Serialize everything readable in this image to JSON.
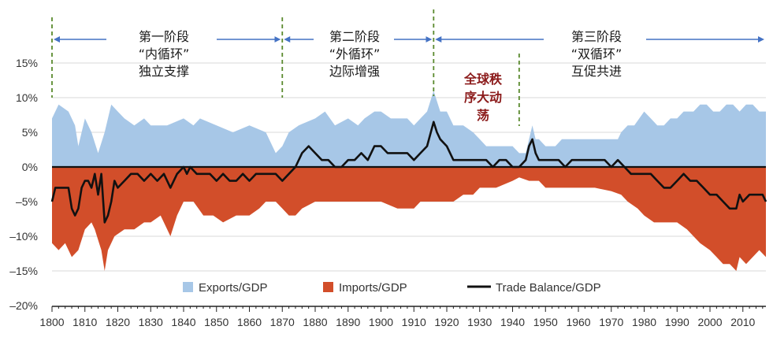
{
  "chart_data": {
    "type": "area",
    "title": "",
    "xlabel": "",
    "ylabel": "",
    "xlim": [
      1800,
      2017
    ],
    "ylim": [
      -20,
      15
    ],
    "x_ticks": [
      1800,
      1810,
      1820,
      1830,
      1840,
      1850,
      1860,
      1870,
      1880,
      1890,
      1900,
      1910,
      1920,
      1930,
      1940,
      1950,
      1960,
      1970,
      1980,
      1990,
      2000,
      2010
    ],
    "x_tick_labels": [
      "1800",
      "1810",
      "1820",
      "1830",
      "1840",
      "1850",
      "1860",
      "1870",
      "1880",
      "1890",
      "1900",
      "1910",
      "1920",
      "1930",
      "1940",
      "1950",
      "1960",
      "1970",
      "1980",
      "1990",
      "2000",
      "2010"
    ],
    "y_ticks": [
      15,
      10,
      5,
      0,
      -5,
      -10,
      -15,
      -20
    ],
    "y_tick_labels": [
      "15%",
      "10%",
      "5%",
      "0%",
      "–5%",
      "–10%",
      "–15%",
      "–20%"
    ],
    "grid": "horizontal",
    "legend_position": "bottom",
    "legend": [
      {
        "label": "Exports/GDP",
        "color": "#a7c7e7",
        "kind": "area"
      },
      {
        "label": "Imports/GDP",
        "color": "#d24e2a",
        "kind": "area"
      },
      {
        "label": "Trade Balance/GDP",
        "color": "#111111",
        "kind": "line"
      }
    ],
    "series": [
      {
        "name": "Exports/GDP",
        "color": "#a7c7e7",
        "points": [
          [
            1800,
            7
          ],
          [
            1802,
            9
          ],
          [
            1805,
            8
          ],
          [
            1807,
            6
          ],
          [
            1808,
            3
          ],
          [
            1810,
            7
          ],
          [
            1812,
            5
          ],
          [
            1814,
            2
          ],
          [
            1816,
            5
          ],
          [
            1818,
            9
          ],
          [
            1820,
            8
          ],
          [
            1822,
            7
          ],
          [
            1825,
            6
          ],
          [
            1828,
            7
          ],
          [
            1830,
            6
          ],
          [
            1835,
            6
          ],
          [
            1840,
            7
          ],
          [
            1843,
            6
          ],
          [
            1845,
            7
          ],
          [
            1850,
            6
          ],
          [
            1855,
            5
          ],
          [
            1860,
            6
          ],
          [
            1865,
            5
          ],
          [
            1868,
            2
          ],
          [
            1870,
            3
          ],
          [
            1872,
            5
          ],
          [
            1875,
            6
          ],
          [
            1880,
            7
          ],
          [
            1883,
            8
          ],
          [
            1886,
            6
          ],
          [
            1890,
            7
          ],
          [
            1893,
            6
          ],
          [
            1895,
            7
          ],
          [
            1898,
            8
          ],
          [
            1900,
            8
          ],
          [
            1903,
            7
          ],
          [
            1905,
            7
          ],
          [
            1908,
            7
          ],
          [
            1910,
            6
          ],
          [
            1912,
            7
          ],
          [
            1914,
            8
          ],
          [
            1916,
            11
          ],
          [
            1918,
            8
          ],
          [
            1920,
            8
          ],
          [
            1922,
            6
          ],
          [
            1925,
            6
          ],
          [
            1928,
            5
          ],
          [
            1930,
            4
          ],
          [
            1932,
            3
          ],
          [
            1935,
            3
          ],
          [
            1938,
            3
          ],
          [
            1940,
            3
          ],
          [
            1942,
            2
          ],
          [
            1944,
            2
          ],
          [
            1946,
            6
          ],
          [
            1947,
            4
          ],
          [
            1948,
            4
          ],
          [
            1950,
            3
          ],
          [
            1953,
            3
          ],
          [
            1955,
            4
          ],
          [
            1957,
            4
          ],
          [
            1960,
            4
          ],
          [
            1963,
            4
          ],
          [
            1965,
            4
          ],
          [
            1968,
            4
          ],
          [
            1970,
            4
          ],
          [
            1972,
            4
          ],
          [
            1973,
            5
          ],
          [
            1975,
            6
          ],
          [
            1977,
            6
          ],
          [
            1980,
            8
          ],
          [
            1982,
            7
          ],
          [
            1984,
            6
          ],
          [
            1986,
            6
          ],
          [
            1988,
            7
          ],
          [
            1990,
            7
          ],
          [
            1992,
            8
          ],
          [
            1995,
            8
          ],
          [
            1997,
            9
          ],
          [
            1999,
            9
          ],
          [
            2001,
            8
          ],
          [
            2003,
            8
          ],
          [
            2005,
            9
          ],
          [
            2007,
            9
          ],
          [
            2009,
            8
          ],
          [
            2011,
            9
          ],
          [
            2013,
            9
          ],
          [
            2015,
            8
          ],
          [
            2017,
            8
          ]
        ]
      },
      {
        "name": "Imports/GDP",
        "color": "#d24e2a",
        "points": [
          [
            1800,
            -11
          ],
          [
            1802,
            -12
          ],
          [
            1804,
            -11
          ],
          [
            1806,
            -13
          ],
          [
            1808,
            -12
          ],
          [
            1810,
            -9
          ],
          [
            1812,
            -8
          ],
          [
            1813,
            -9
          ],
          [
            1815,
            -12
          ],
          [
            1816,
            -15
          ],
          [
            1817,
            -12
          ],
          [
            1819,
            -10
          ],
          [
            1822,
            -9
          ],
          [
            1825,
            -9
          ],
          [
            1828,
            -8
          ],
          [
            1830,
            -8
          ],
          [
            1833,
            -7
          ],
          [
            1836,
            -10
          ],
          [
            1838,
            -7
          ],
          [
            1840,
            -5
          ],
          [
            1843,
            -5
          ],
          [
            1846,
            -7
          ],
          [
            1849,
            -7
          ],
          [
            1852,
            -8
          ],
          [
            1856,
            -7
          ],
          [
            1860,
            -7
          ],
          [
            1863,
            -6
          ],
          [
            1865,
            -5
          ],
          [
            1868,
            -5
          ],
          [
            1870,
            -6
          ],
          [
            1872,
            -7
          ],
          [
            1874,
            -7
          ],
          [
            1876,
            -6
          ],
          [
            1880,
            -5
          ],
          [
            1884,
            -5
          ],
          [
            1888,
            -5
          ],
          [
            1890,
            -5
          ],
          [
            1895,
            -5
          ],
          [
            1900,
            -5
          ],
          [
            1905,
            -6
          ],
          [
            1910,
            -6
          ],
          [
            1912,
            -5
          ],
          [
            1915,
            -5
          ],
          [
            1918,
            -5
          ],
          [
            1920,
            -5
          ],
          [
            1922,
            -5
          ],
          [
            1925,
            -4
          ],
          [
            1928,
            -4
          ],
          [
            1930,
            -3
          ],
          [
            1935,
            -3
          ],
          [
            1940,
            -2
          ],
          [
            1942,
            -1.5
          ],
          [
            1945,
            -2
          ],
          [
            1948,
            -2
          ],
          [
            1950,
            -3
          ],
          [
            1955,
            -3
          ],
          [
            1960,
            -3
          ],
          [
            1965,
            -3
          ],
          [
            1970,
            -3.5
          ],
          [
            1973,
            -4
          ],
          [
            1975,
            -5
          ],
          [
            1978,
            -6
          ],
          [
            1980,
            -7
          ],
          [
            1983,
            -8
          ],
          [
            1985,
            -8
          ],
          [
            1988,
            -8
          ],
          [
            1990,
            -8
          ],
          [
            1993,
            -9
          ],
          [
            1995,
            -10
          ],
          [
            1997,
            -11
          ],
          [
            2000,
            -12
          ],
          [
            2002,
            -13
          ],
          [
            2004,
            -14
          ],
          [
            2006,
            -14
          ],
          [
            2008,
            -15
          ],
          [
            2009,
            -13
          ],
          [
            2011,
            -14
          ],
          [
            2013,
            -13
          ],
          [
            2015,
            -12
          ],
          [
            2017,
            -13
          ]
        ]
      },
      {
        "name": "Trade Balance/GDP",
        "color": "#111111",
        "points": [
          [
            1800,
            -5
          ],
          [
            1801,
            -3
          ],
          [
            1802,
            -3
          ],
          [
            1803,
            -3
          ],
          [
            1804,
            -3
          ],
          [
            1805,
            -3
          ],
          [
            1806,
            -6
          ],
          [
            1807,
            -7
          ],
          [
            1808,
            -6
          ],
          [
            1809,
            -3
          ],
          [
            1810,
            -2
          ],
          [
            1811,
            -2
          ],
          [
            1812,
            -3
          ],
          [
            1813,
            -1
          ],
          [
            1814,
            -4
          ],
          [
            1815,
            -1
          ],
          [
            1816,
            -8
          ],
          [
            1817,
            -7
          ],
          [
            1818,
            -5
          ],
          [
            1819,
            -2
          ],
          [
            1820,
            -3
          ],
          [
            1822,
            -2
          ],
          [
            1824,
            -1
          ],
          [
            1826,
            -1
          ],
          [
            1828,
            -2
          ],
          [
            1830,
            -1
          ],
          [
            1832,
            -2
          ],
          [
            1834,
            -1
          ],
          [
            1836,
            -3
          ],
          [
            1838,
            -1
          ],
          [
            1840,
            0
          ],
          [
            1841,
            -1
          ],
          [
            1842,
            0
          ],
          [
            1844,
            -1
          ],
          [
            1846,
            -1
          ],
          [
            1848,
            -1
          ],
          [
            1850,
            -2
          ],
          [
            1852,
            -1
          ],
          [
            1854,
            -2
          ],
          [
            1856,
            -2
          ],
          [
            1858,
            -1
          ],
          [
            1860,
            -2
          ],
          [
            1862,
            -1
          ],
          [
            1864,
            -1
          ],
          [
            1866,
            -1
          ],
          [
            1868,
            -1
          ],
          [
            1870,
            -2
          ],
          [
            1872,
            -1
          ],
          [
            1874,
            0
          ],
          [
            1876,
            2
          ],
          [
            1878,
            3
          ],
          [
            1880,
            2
          ],
          [
            1882,
            1
          ],
          [
            1884,
            1
          ],
          [
            1886,
            0
          ],
          [
            1888,
            0
          ],
          [
            1890,
            1
          ],
          [
            1892,
            1
          ],
          [
            1894,
            2
          ],
          [
            1896,
            1
          ],
          [
            1898,
            3
          ],
          [
            1900,
            3
          ],
          [
            1902,
            2
          ],
          [
            1904,
            2
          ],
          [
            1906,
            2
          ],
          [
            1908,
            2
          ],
          [
            1910,
            1
          ],
          [
            1912,
            2
          ],
          [
            1914,
            3
          ],
          [
            1916,
            6.5
          ],
          [
            1917,
            5
          ],
          [
            1918,
            4
          ],
          [
            1920,
            3
          ],
          [
            1922,
            1
          ],
          [
            1924,
            1
          ],
          [
            1926,
            1
          ],
          [
            1928,
            1
          ],
          [
            1930,
            1
          ],
          [
            1932,
            1
          ],
          [
            1934,
            0
          ],
          [
            1936,
            1
          ],
          [
            1938,
            1
          ],
          [
            1940,
            0
          ],
          [
            1942,
            0
          ],
          [
            1944,
            1
          ],
          [
            1945,
            3
          ],
          [
            1946,
            4
          ],
          [
            1947,
            2
          ],
          [
            1948,
            1
          ],
          [
            1950,
            1
          ],
          [
            1952,
            1
          ],
          [
            1954,
            1
          ],
          [
            1956,
            0
          ],
          [
            1958,
            1
          ],
          [
            1960,
            1
          ],
          [
            1962,
            1
          ],
          [
            1964,
            1
          ],
          [
            1966,
            1
          ],
          [
            1968,
            1
          ],
          [
            1970,
            0
          ],
          [
            1972,
            1
          ],
          [
            1974,
            0
          ],
          [
            1976,
            -1
          ],
          [
            1978,
            -1
          ],
          [
            1980,
            -1
          ],
          [
            1982,
            -1
          ],
          [
            1984,
            -2
          ],
          [
            1986,
            -3
          ],
          [
            1988,
            -3
          ],
          [
            1990,
            -2
          ],
          [
            1992,
            -1
          ],
          [
            1994,
            -2
          ],
          [
            1996,
            -2
          ],
          [
            1998,
            -3
          ],
          [
            2000,
            -4
          ],
          [
            2002,
            -4
          ],
          [
            2004,
            -5
          ],
          [
            2006,
            -6
          ],
          [
            2008,
            -6
          ],
          [
            2009,
            -4
          ],
          [
            2010,
            -5
          ],
          [
            2012,
            -4
          ],
          [
            2014,
            -4
          ],
          [
            2016,
            -4
          ],
          [
            2017,
            -5
          ]
        ]
      }
    ],
    "annotations": {
      "phases": [
        {
          "line1": "第一阶段",
          "line2": "“内循环”",
          "line3": "独立支撑"
        },
        {
          "line1": "第二阶段",
          "line2": "“外循环”",
          "line3": "边际增强"
        },
        {
          "line1": "第三阶段",
          "line2": "“双循环”",
          "line3": "互促共进"
        }
      ],
      "turmoil": {
        "line1": "全球秩",
        "line2": "序大动",
        "line3": "荡",
        "color": "#8b1a1a"
      },
      "phase_boundary_years": [
        1800,
        1870,
        1916,
        1942
      ],
      "arrow_color": "#4472c4",
      "boundary_color": "#5a8a2e"
    }
  }
}
